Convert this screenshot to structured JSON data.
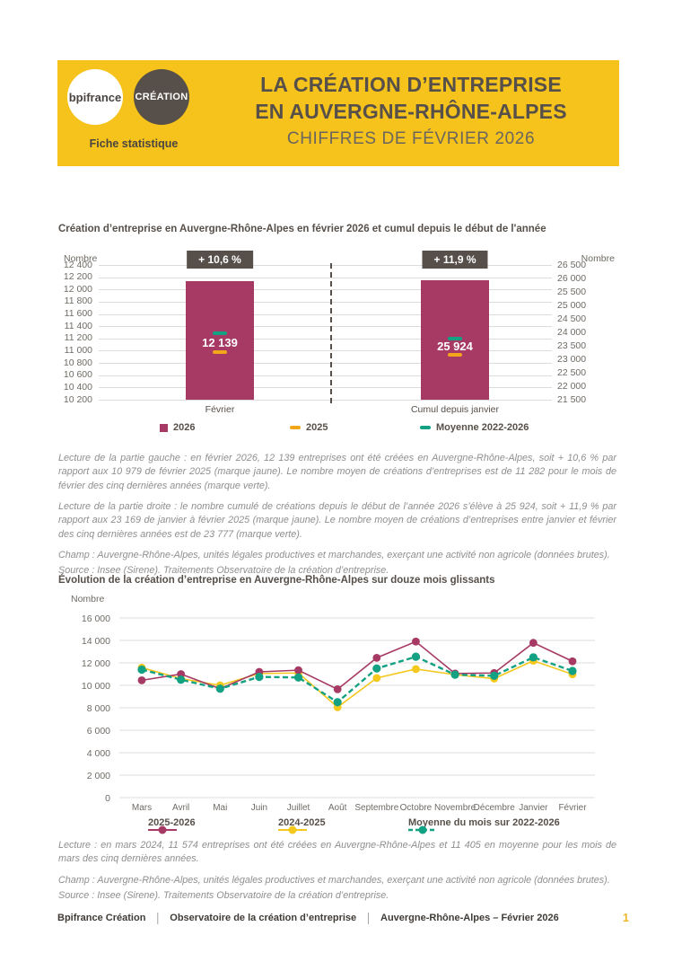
{
  "theme": {
    "yellow": "#F5C31B",
    "dark": "#57504A",
    "dark_text": "#4A4440",
    "subtitle_gray": "#6B655F",
    "maroon": "#A63A64",
    "gold_marker": "#F2A71B",
    "gold_line": "#F5C81E",
    "teal": "#12A182",
    "tick_gray": "#6F6A64",
    "note_gray": "#8F8F8F",
    "grid_gray": "#DCDCDC",
    "footer_text": "#403B36",
    "page_number_color": "#F0B429"
  },
  "header": {
    "logo_primary": "bpifrance",
    "logo_secondary": "CRÉATION",
    "tagline": "Fiche statistique",
    "title_line1": "LA CRÉATION D’ENTREPRISE",
    "title_line2": "EN AUVERGNE-RHÔNE-ALPES",
    "subtitle": "CHIFFRES DE FÉVRIER 2026"
  },
  "chart_data": [
    {
      "type": "bar",
      "title": "Création d’entreprise en Auvergne-Rhône-Alpes en février 2026 et cumul depuis le début de l'année",
      "left_axis": {
        "label": "Nombre",
        "ylim": [
          10200,
          12400
        ],
        "tick_labels": [
          "12 400",
          "12 200",
          "12 000",
          "11 800",
          "11 600",
          "11 400",
          "11 200",
          "11 000",
          "10 800",
          "10 600",
          "10 400",
          "10 200"
        ]
      },
      "right_axis": {
        "label": "Nombre",
        "ylim": [
          21500,
          26500
        ],
        "tick_labels": [
          "26 500",
          "26 000",
          "25 500",
          "25 000",
          "24 500",
          "24 000",
          "23 500",
          "23 000",
          "22 500",
          "22 000",
          "21 500"
        ]
      },
      "groups": [
        {
          "category": "Février",
          "badge": "+ 10,6 %",
          "value_2026": 12139,
          "value_label": "12 139",
          "value_2025": 10979,
          "value_moyenne": 11282
        },
        {
          "category": "Cumul depuis janvier",
          "badge": "+ 11,9 %",
          "value_2026": 25924,
          "value_label": "25 924",
          "value_2025": 23169,
          "value_moyenne": 23777
        }
      ],
      "legend": [
        {
          "label": "2026",
          "marker": "square",
          "color": "#A63A64"
        },
        {
          "label": "2025",
          "marker": "dash",
          "color": "#F2A71B"
        },
        {
          "label": "Moyenne 2022-2026",
          "marker": "dash",
          "color": "#12A182"
        }
      ]
    },
    {
      "type": "line",
      "title": "Évolution de la création d’entreprise en Auvergne-Rhône-Alpes sur douze mois glissants",
      "ylabel": "Nombre",
      "ylim": [
        0,
        16000
      ],
      "ytick_labels": [
        "16 000",
        "14 000",
        "12 000",
        "10 000",
        "8 000",
        "6 000",
        "4 000",
        "2 000",
        "0"
      ],
      "categories": [
        "Mars",
        "Avril",
        "Mai",
        "Juin",
        "Juillet",
        "Août",
        "Septembre",
        "Octobre",
        "Novembre",
        "Décembre",
        "Janvier",
        "Février"
      ],
      "grid": true,
      "legend_position": "bottom",
      "series": [
        {
          "name": "2025-2026",
          "color": "#A63A64",
          "dashed": false,
          "values": [
            10450,
            11000,
            9700,
            11200,
            11350,
            9650,
            12450,
            13900,
            11050,
            11100,
            13785,
            12139
          ]
        },
        {
          "name": "2024-2025",
          "color": "#F5C81E",
          "dashed": false,
          "values": [
            11574,
            10600,
            10000,
            11050,
            11100,
            8050,
            10650,
            11450,
            10950,
            10600,
            12190,
            10979
          ]
        },
        {
          "name": "Moyenne du mois sur 2022-2026",
          "color": "#12A182",
          "dashed": true,
          "values": [
            11405,
            10500,
            9700,
            10750,
            10700,
            8500,
            11500,
            12550,
            10950,
            10850,
            12495,
            11282
          ]
        }
      ]
    }
  ],
  "notes1": [
    "Lecture de la partie gauche : en février 2026, 12 139 entreprises ont été créées en Auvergne-Rhône-Alpes, soit + 10,6 % par rapport aux 10 979 de février 2025 (marque jaune). Le nombre moyen de créations d’entreprises est de 11 282 pour le mois de février des cinq dernières années (marque verte).",
    "Lecture de la partie droite : le nombre cumulé de créations depuis le début de l’année 2026 s’élève à 25 924, soit + 11,9 % par rapport aux 23 169 de janvier à février 2025 (marque jaune). Le nombre moyen de créations d’entreprises entre janvier et février des cinq dernières années est de 23 777 (marque verte).",
    "Champ : Auvergne-Rhône-Alpes, unités légales productives et marchandes, exerçant une activité non agricole (données brutes).",
    "Source : Insee (Sirene). Traitements Observatoire de la création d’entreprise."
  ],
  "notes2": [
    "Lecture : en mars 2024, 11 574 entreprises ont été créées en Auvergne-Rhône-Alpes et 11 405 en moyenne pour les mois de mars des cinq dernières années.",
    "Champ : Auvergne-Rhône-Alpes, unités légales productives et marchandes, exerçant une activité non agricole (données brutes).",
    "Source : Insee (Sirene). Traitements Observatoire de la création d’entreprise."
  ],
  "footer": {
    "items": [
      "Bpifrance Création",
      "Observatoire de la création d’entreprise",
      "Auvergne-Rhône-Alpes – Février 2026"
    ],
    "separator": "|",
    "page": "1"
  }
}
